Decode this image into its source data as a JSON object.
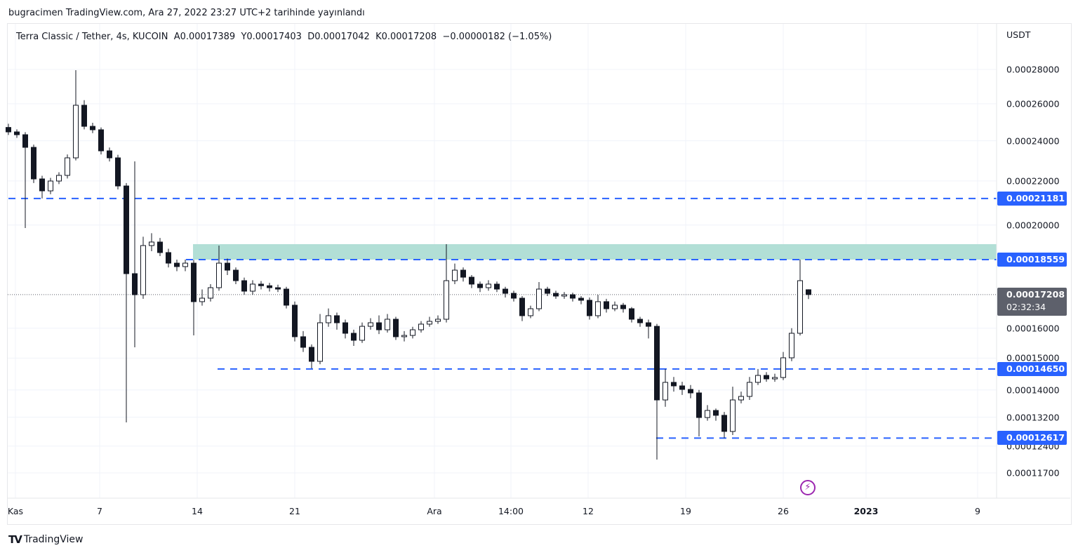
{
  "published_line": "bugracimen TradingView.com, Ara 27, 2022 23:27 UTC+2 tarihinde yayınlandı",
  "legend": {
    "symbol": "Terra Classic / Tether, 4s, KUCOIN",
    "open": "A0.00017389",
    "high": "Y0.00017403",
    "low": "D0.00017042",
    "close": "K0.00017208",
    "change": "−0.00000182 (−1.05%)"
  },
  "branding": {
    "logo_text": "TradingView"
  },
  "colors": {
    "level_line": "#2962ff",
    "zone": "#b2dfd6",
    "up_body": "#ffffff",
    "down_body": "#131722",
    "last_price_label": "#5d606b",
    "alert_icon": "#9c27b0"
  },
  "icons": {
    "alert": "lightning-bolt-icon",
    "logo": "tradingview-logo-icon"
  },
  "chart_data": {
    "type": "candlestick",
    "title": "Terra Classic / Tether, 4s, KUCOIN",
    "currency": "USDT",
    "yscale": "log",
    "ylim": [
      0.000109,
      0.000295
    ],
    "grid": true,
    "y_ticks": [
      "0.00028000",
      "0.00026000",
      "0.00024000",
      "0.00022000",
      "0.00020000",
      "0.00016000",
      "0.00015000",
      "0.00014000",
      "0.00013200",
      "0.00012400",
      "0.00011700"
    ],
    "x_ticks": [
      {
        "label": "Kas",
        "bold": false
      },
      {
        "label": "7",
        "bold": false
      },
      {
        "label": "14",
        "bold": false
      },
      {
        "label": "21",
        "bold": false
      },
      {
        "label": "Ara",
        "bold": false
      },
      {
        "label": "14:00",
        "bold": false
      },
      {
        "label": "12",
        "bold": false
      },
      {
        "label": "19",
        "bold": false
      },
      {
        "label": "26",
        "bold": false
      },
      {
        "label": "2023",
        "bold": true
      },
      {
        "label": "9",
        "bold": false
      }
    ],
    "horizontal_levels": [
      "0.00021181",
      "0.00018559",
      "0.00014650",
      "0.00012617"
    ],
    "zone": {
      "from": "0.00018559",
      "to": "0.00019191"
    },
    "last_price": {
      "value": "0.00017208",
      "countdown": "02:32:34"
    },
    "candles_ohlc": [
      [
        0.000247,
        0.000249,
        0.000243,
        0.00024463
      ],
      [
        0.00024463,
        0.000246,
        0.0002415,
        0.00024315
      ],
      [
        0.00024315,
        0.0002445,
        0.00019872,
        0.0002366
      ],
      [
        0.0002366,
        0.000238,
        0.000219,
        0.00022098
      ],
      [
        0.00022098,
        0.0002225,
        0.00021181,
        0.00021535
      ],
      [
        0.00021535,
        0.0002215,
        0.0002138,
        0.00021997
      ],
      [
        0.00021997,
        0.0002242,
        0.0002185,
        0.00022268
      ],
      [
        0.00022268,
        0.000233,
        0.0002212,
        0.00023128
      ],
      [
        0.00023128,
        0.00027958,
        0.00023,
        0.00025914
      ],
      [
        0.00025914,
        0.000262,
        0.000246,
        0.0002476
      ],
      [
        0.0002476,
        0.0002495,
        0.000244,
        0.00024576
      ],
      [
        0.00024576,
        0.000247,
        0.000233,
        0.00023481
      ],
      [
        0.00023481,
        0.0002365,
        0.0002295,
        0.00023128
      ],
      [
        0.00023128,
        0.0002328,
        0.000216,
        0.00021764
      ],
      [
        0.00021764,
        0.000219,
        0.00013051,
        0.00018004
      ],
      [
        0.00018004,
        0.00022952,
        0.00015353,
        0.00017203
      ],
      [
        0.00017203,
        0.000195,
        0.0001705,
        0.00019132
      ],
      [
        0.00019132,
        0.0001965,
        0.000189,
        0.00019278
      ],
      [
        0.00019278,
        0.0001945,
        0.000187,
        0.00018844
      ],
      [
        0.00018844,
        0.00019,
        0.0001825,
        0.00018418
      ],
      [
        0.00018418,
        0.00018559,
        0.000181,
        0.00018281
      ],
      [
        0.00018281,
        0.00018559,
        0.000181,
        0.00018418
      ],
      [
        0.00018418,
        0.0001855,
        0.00015753,
        0.00016946
      ],
      [
        0.00016946,
        0.000174,
        0.000168,
        0.00017074
      ],
      [
        0.00017074,
        0.000176,
        0.0001695,
        0.00017466
      ],
      [
        0.00017466,
        0.00019132,
        0.0001735,
        0.00018418
      ],
      [
        0.00018418,
        0.000186,
        0.0001795,
        0.00018141
      ],
      [
        0.00018141,
        0.0001825,
        0.000176,
        0.00017733
      ],
      [
        0.00017733,
        0.0001785,
        0.000172,
        0.00017335
      ],
      [
        0.00017335,
        0.0001775,
        0.000172,
        0.00017601
      ],
      [
        0.00017601,
        0.0001772,
        0.000174,
        0.0001754
      ],
      [
        0.0001754,
        0.0001765,
        0.0001732,
        0.00017466
      ],
      [
        0.00017466,
        0.0001758,
        0.000173,
        0.00017413
      ],
      [
        0.00017413,
        0.000175,
        0.000167,
        0.00016817
      ],
      [
        0.00016817,
        0.0001695,
        0.0001555,
        0.00015708
      ],
      [
        0.00015708,
        0.000159,
        0.000152,
        0.00015353
      ],
      [
        0.00015353,
        0.0001545,
        0.00014669,
        0.00014894
      ],
      [
        0.00014894,
        0.000165,
        0.000148,
        0.0001619
      ],
      [
        0.0001619,
        0.000167,
        0.0001605,
        0.00016439
      ],
      [
        0.00016439,
        0.0001655,
        0.0001595,
        0.0001619
      ],
      [
        0.0001619,
        0.000163,
        0.0001565,
        0.00015826
      ],
      [
        0.00015826,
        0.0001595,
        0.000154,
        0.00015588
      ],
      [
        0.00015588,
        0.000162,
        0.000155,
        0.00016066
      ],
      [
        0.00016066,
        0.0001635,
        0.0001595,
        0.0001619
      ],
      [
        0.0001619,
        0.0001645,
        0.000158,
        0.00015946
      ],
      [
        0.00015946,
        0.000165,
        0.0001585,
        0.00016314
      ],
      [
        0.00016314,
        0.000164,
        0.000156,
        0.00015708
      ],
      [
        0.00015708,
        0.000159,
        0.0001555,
        0.00015753
      ],
      [
        0.00015753,
        0.0001605,
        0.0001565,
        0.00015946
      ],
      [
        0.00015946,
        0.0001625,
        0.0001585,
        0.00016142
      ],
      [
        0.00016142,
        0.000164,
        0.0001605,
        0.00016239
      ],
      [
        0.00016239,
        0.0001645,
        0.0001615,
        0.00016314
      ],
      [
        0.00016314,
        0.00019191,
        0.000162,
        0.00017733
      ],
      [
        0.00017733,
        0.000184,
        0.000176,
        0.00018141
      ],
      [
        0.00018141,
        0.0001825,
        0.000177,
        0.00017867
      ],
      [
        0.00017867,
        0.0001795,
        0.0001745,
        0.00017601
      ],
      [
        0.00017601,
        0.000177,
        0.000173,
        0.00017466
      ],
      [
        0.00017466,
        0.0001775,
        0.0001735,
        0.00017601
      ],
      [
        0.00017601,
        0.000177,
        0.000173,
        0.00017413
      ],
      [
        0.00017413,
        0.000175,
        0.000171,
        0.00017254
      ],
      [
        0.00017254,
        0.0001735,
        0.0001695,
        0.00017074
      ],
      [
        0.00017074,
        0.0001715,
        0.0001625,
        0.00016439
      ],
      [
        0.00016439,
        0.000168,
        0.0001635,
        0.00016689
      ],
      [
        0.00016689,
        0.0001768,
        0.000166,
        0.00017413
      ],
      [
        0.00017413,
        0.000175,
        0.0001715,
        0.00017254
      ],
      [
        0.00017254,
        0.0001735,
        0.0001705,
        0.00017152
      ],
      [
        0.00017152,
        0.000173,
        0.0001705,
        0.00017203
      ],
      [
        0.00017203,
        0.0001728,
        0.0001695,
        0.00017074
      ],
      [
        0.00017074,
        0.0001715,
        0.0001685,
        0.00016997
      ],
      [
        0.00016997,
        0.000171,
        0.000163,
        0.00016439
      ],
      [
        0.00016439,
        0.000172,
        0.0001635,
        0.00016946
      ],
      [
        0.00016946,
        0.0001705,
        0.0001655,
        0.00016689
      ],
      [
        0.00016689,
        0.0001695,
        0.000166,
        0.00016817
      ],
      [
        0.00016817,
        0.000169,
        0.0001655,
        0.00016689
      ],
      [
        0.00016689,
        0.0001675,
        0.000162,
        0.00016314
      ],
      [
        0.00016314,
        0.000164,
        0.0001605,
        0.0001619
      ],
      [
        0.0001619,
        0.000163,
        0.0001565,
        0.00016066
      ],
      [
        0.00016066,
        0.0001615,
        0.00012043,
        0.00013701
      ],
      [
        0.00013701,
        0.0001465,
        0.000135,
        0.00014232
      ],
      [
        0.00014232,
        0.000144,
        0.0001395,
        0.00014124
      ],
      [
        0.00014124,
        0.0001425,
        0.0001385,
        0.00014017
      ],
      [
        0.00014017,
        0.0001415,
        0.0001375,
        0.00013911
      ],
      [
        0.00013911,
        0.00014,
        0.00012662,
        0.0001319
      ],
      [
        0.0001319,
        0.0001355,
        0.000131,
        0.00013393
      ],
      [
        0.00013393,
        0.0001345,
        0.000131,
        0.00013253
      ],
      [
        0.00013253,
        0.0001335,
        0.00012617,
        0.00012799
      ],
      [
        0.00012799,
        0.000141,
        0.000127,
        0.00013701
      ],
      [
        0.00013701,
        0.0001395,
        0.000136,
        0.00013806
      ],
      [
        0.00013806,
        0.000144,
        0.000137,
        0.00014232
      ],
      [
        0.00014232,
        0.0001465,
        0.0001415,
        0.00014448
      ],
      [
        0.00014448,
        0.0001455,
        0.0001425,
        0.00014339
      ],
      [
        0.00014339,
        0.000145,
        0.0001425,
        0.00014383
      ],
      [
        0.00014383,
        0.000152,
        0.000143,
        0.00015008
      ],
      [
        0.00015008,
        0.00016,
        0.000149,
        0.00015826
      ],
      [
        0.00015826,
        0.00018559,
        0.0001575,
        0.00017733
      ],
      [
        0.00017389,
        0.00017403,
        0.00017042,
        0.00017208
      ]
    ]
  }
}
